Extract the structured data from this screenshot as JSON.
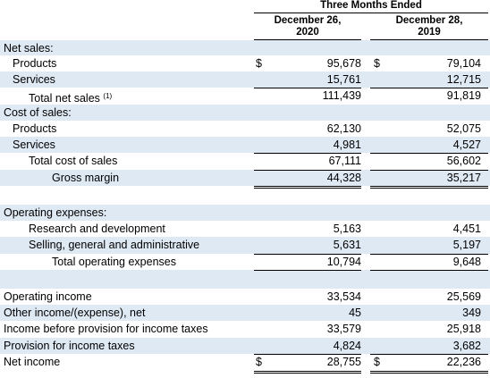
{
  "header": {
    "period": "Three Months Ended",
    "col1": [
      "December 26,",
      "2020"
    ],
    "col2": [
      "December 28,",
      "2019"
    ]
  },
  "rows": [
    {
      "label": "Net sales:",
      "indent": 0
    },
    {
      "label": "Products",
      "indent": 1,
      "c1": "95,678",
      "c2": "79,104",
      "d1": "$",
      "d2": "$"
    },
    {
      "label": "Services",
      "indent": 1,
      "c1": "15,761",
      "c2": "12,715"
    },
    {
      "label": "Total net sales",
      "sup": "(1)",
      "indent": 2,
      "c1": "111,439",
      "c2": "91,819"
    },
    {
      "label": "Cost of sales:",
      "indent": 0
    },
    {
      "label": "Products",
      "indent": 1,
      "c1": "62,130",
      "c2": "52,075"
    },
    {
      "label": "Services",
      "indent": 1,
      "c1": "4,981",
      "c2": "4,527"
    },
    {
      "label": "Total cost of sales",
      "indent": 2,
      "c1": "67,111",
      "c2": "56,602"
    },
    {
      "label": "Gross margin",
      "indent": 3,
      "c1": "44,328",
      "c2": "35,217"
    },
    {
      "label": "",
      "indent": 0
    },
    {
      "label": "Operating expenses:",
      "indent": 0
    },
    {
      "label": "Research and development",
      "indent": 2,
      "c1": "5,163",
      "c2": "4,451"
    },
    {
      "label": "Selling, general and administrative",
      "indent": 2,
      "c1": "5,631",
      "c2": "5,197"
    },
    {
      "label": "Total operating expenses",
      "indent": 3,
      "c1": "10,794",
      "c2": "9,648"
    },
    {
      "label": "",
      "indent": 0
    },
    {
      "label": "Operating income",
      "indent": 0,
      "c1": "33,534",
      "c2": "25,569"
    },
    {
      "label": "Other income/(expense), net",
      "indent": 0,
      "c1": "45",
      "c2": "349"
    },
    {
      "label": "Income before provision for income taxes",
      "indent": 0,
      "c1": "33,579",
      "c2": "25,918"
    },
    {
      "label": "Provision for income taxes",
      "indent": 0,
      "c1": "4,824",
      "c2": "3,682"
    },
    {
      "label": "Net income",
      "indent": 0,
      "c1": "28,755",
      "c2": "22,236",
      "d1": "$",
      "d2": "$"
    }
  ]
}
